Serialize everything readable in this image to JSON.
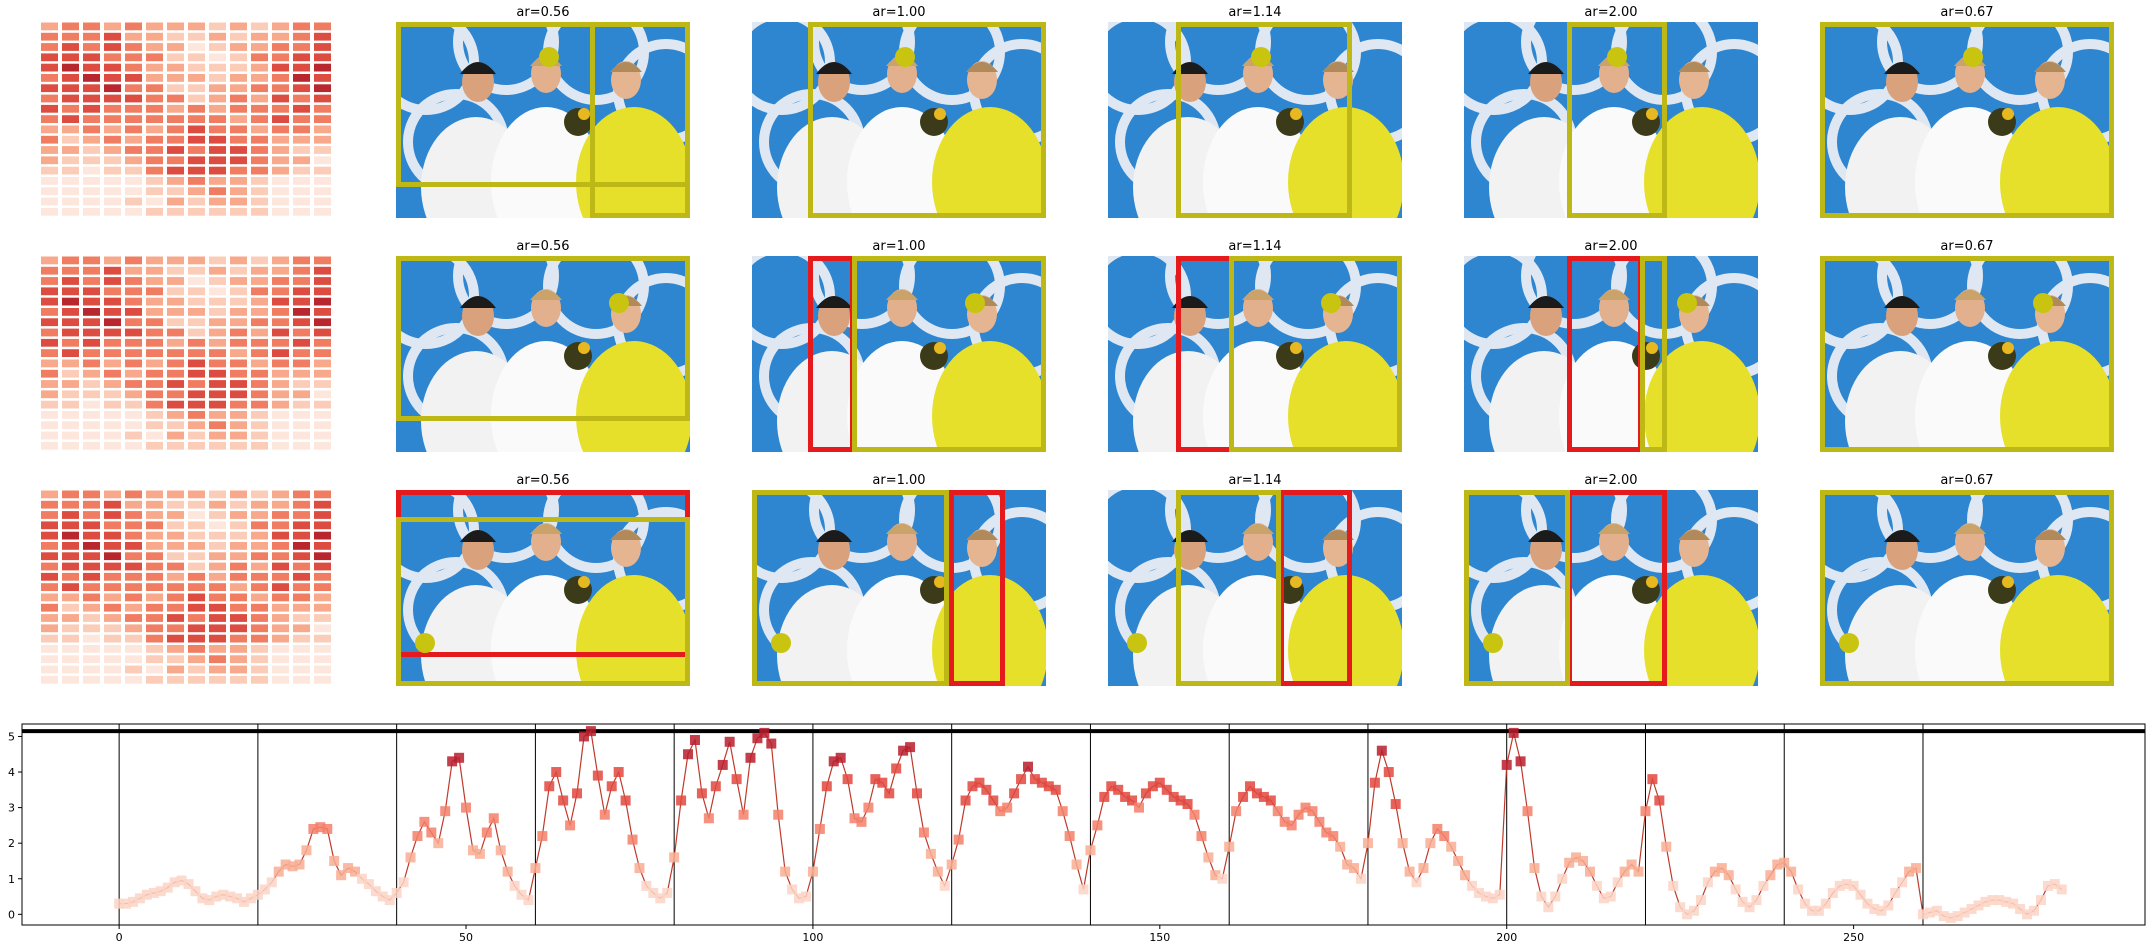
{
  "colors": {
    "yellow_box": "#bdb815",
    "red_box": "#e41a1c",
    "line": "#c0392b",
    "sky": "#2e86d1"
  },
  "rows": [
    {
      "panels": [
        {
          "title": "",
          "type": "heatmap"
        },
        {
          "title": "ar=0.56",
          "boxes": [
            {
              "color": "yellow"
            },
            {
              "color": "yellow"
            }
          ],
          "dot": true
        },
        {
          "title": "ar=1.00",
          "boxes": [
            {
              "color": "yellow"
            }
          ],
          "dot": true
        },
        {
          "title": "ar=1.14",
          "boxes": [
            {
              "color": "yellow"
            }
          ],
          "dot": true
        },
        {
          "title": "ar=2.00",
          "boxes": [
            {
              "color": "yellow"
            }
          ],
          "dot": true
        },
        {
          "title": "ar=0.67",
          "boxes": [
            {
              "color": "yellow"
            }
          ],
          "dot": true
        }
      ]
    },
    {
      "panels": [
        {
          "title": "",
          "type": "heatmap"
        },
        {
          "title": "ar=0.56",
          "boxes": [
            {
              "color": "yellow"
            }
          ],
          "dot": true
        },
        {
          "title": "ar=1.00",
          "boxes": [
            {
              "color": "red"
            },
            {
              "color": "yellow"
            }
          ],
          "dot": true
        },
        {
          "title": "ar=1.14",
          "boxes": [
            {
              "color": "red"
            },
            {
              "color": "yellow"
            }
          ],
          "dot": true
        },
        {
          "title": "ar=2.00",
          "boxes": [
            {
              "color": "red"
            },
            {
              "color": "yellow"
            }
          ],
          "dot": true
        },
        {
          "title": "ar=0.67",
          "boxes": [
            {
              "color": "yellow"
            }
          ],
          "dot": true
        }
      ]
    },
    {
      "panels": [
        {
          "title": "",
          "type": "heatmap"
        },
        {
          "title": "ar=0.56",
          "boxes": [
            {
              "color": "red"
            },
            {
              "color": "yellow"
            }
          ],
          "dot": true
        },
        {
          "title": "ar=1.00",
          "boxes": [
            {
              "color": "red"
            },
            {
              "color": "yellow"
            }
          ],
          "dot": true
        },
        {
          "title": "ar=1.14",
          "boxes": [
            {
              "color": "red"
            },
            {
              "color": "yellow"
            }
          ],
          "dot": true
        },
        {
          "title": "ar=2.00",
          "boxes": [
            {
              "color": "red"
            },
            {
              "color": "yellow"
            }
          ],
          "dot": true
        },
        {
          "title": "ar=0.67",
          "boxes": [
            {
              "color": "yellow"
            }
          ],
          "dot": true
        }
      ]
    }
  ],
  "chart_data": {
    "type": "line",
    "title": "",
    "xlabel": "",
    "ylabel": "",
    "xlim": [
      -14,
      292
    ],
    "ylim": [
      -0.3,
      5.35
    ],
    "x_ticks": [
      0,
      50,
      100,
      150,
      200,
      250
    ],
    "y_ticks": [
      0,
      1,
      2,
      3,
      4,
      5
    ],
    "hline": 5.15,
    "vlines": [
      0,
      20,
      40,
      60,
      80,
      100,
      120,
      140,
      160,
      180,
      200,
      220,
      240,
      260
    ],
    "grid": false,
    "legend": "none",
    "series": [
      {
        "values": [
          0.3,
          0.3,
          0.35,
          0.45,
          0.55,
          0.6,
          0.65,
          0.75,
          0.9,
          0.95,
          0.85,
          0.65,
          0.45,
          0.4,
          0.5,
          0.55,
          0.5,
          0.45,
          0.35,
          0.45,
          0.55,
          0.7,
          0.9,
          1.2,
          1.4,
          1.35,
          1.4,
          1.8,
          2.4,
          2.45,
          2.4,
          1.5,
          1.1,
          1.3,
          1.2,
          1.0,
          0.85,
          0.65,
          0.5,
          0.4,
          0.6,
          0.9,
          1.6,
          2.2,
          2.6,
          2.3,
          2.0,
          2.9,
          4.3,
          4.4,
          3.0,
          1.8,
          1.7,
          2.3,
          2.7,
          1.8,
          1.2,
          0.8,
          0.55,
          0.4,
          1.3,
          2.2,
          3.6,
          4.0,
          3.2,
          2.5,
          3.4,
          5.0,
          5.15,
          3.9,
          2.8,
          3.6,
          4.0,
          3.2,
          2.1,
          1.3,
          0.8,
          0.6,
          0.45,
          0.6,
          1.6,
          3.2,
          4.5,
          4.9,
          3.4,
          2.7,
          3.6,
          4.2,
          4.85,
          3.8,
          2.8,
          4.4,
          4.95,
          5.1,
          4.8,
          2.8,
          1.2,
          0.7,
          0.45,
          0.5,
          1.2,
          2.4,
          3.6,
          4.3,
          4.4,
          3.8,
          2.7,
          2.6,
          3.0,
          3.8,
          3.7,
          3.4,
          4.1,
          4.6,
          4.7,
          3.4,
          2.3,
          1.7,
          1.2,
          0.8,
          1.4,
          2.1,
          3.2,
          3.6,
          3.7,
          3.5,
          3.2,
          2.9,
          3.0,
          3.4,
          3.8,
          4.15,
          3.8,
          3.7,
          3.6,
          3.5,
          2.9,
          2.2,
          1.4,
          0.7,
          1.8,
          2.5,
          3.3,
          3.6,
          3.5,
          3.3,
          3.2,
          3.0,
          3.4,
          3.6,
          3.7,
          3.5,
          3.3,
          3.2,
          3.1,
          2.8,
          2.2,
          1.6,
          1.1,
          1.0,
          1.9,
          2.9,
          3.3,
          3.6,
          3.4,
          3.3,
          3.2,
          2.9,
          2.6,
          2.5,
          2.8,
          3.0,
          2.9,
          2.6,
          2.3,
          2.2,
          1.9,
          1.4,
          1.3,
          1.0,
          2.0,
          3.7,
          4.6,
          4.0,
          3.1,
          2.0,
          1.2,
          0.9,
          1.3,
          2.0,
          2.4,
          2.2,
          1.9,
          1.5,
          1.1,
          0.8,
          0.6,
          0.5,
          0.45,
          0.55,
          4.2,
          5.1,
          4.3,
          2.9,
          1.3,
          0.5,
          0.2,
          0.5,
          1.0,
          1.45,
          1.6,
          1.5,
          1.2,
          0.8,
          0.45,
          0.5,
          0.9,
          1.2,
          1.4,
          1.2,
          2.9,
          3.8,
          3.2,
          1.9,
          0.8,
          0.2,
          0.0,
          0.1,
          0.4,
          0.9,
          1.2,
          1.3,
          1.1,
          0.7,
          0.35,
          0.2,
          0.4,
          0.8,
          1.1,
          1.4,
          1.45,
          1.2,
          0.7,
          0.3,
          0.1,
          0.1,
          0.3,
          0.6,
          0.8,
          0.85,
          0.8,
          0.55,
          0.3,
          0.15,
          0.1,
          0.25,
          0.6,
          0.9,
          1.2,
          1.3,
          0.0,
          0.05,
          0.1,
          -0.05,
          -0.1,
          -0.05,
          0.05,
          0.15,
          0.25,
          0.35,
          0.4,
          0.4,
          0.35,
          0.3,
          0.15,
          0.0,
          0.1,
          0.4,
          0.8,
          0.85,
          0.7
        ]
      }
    ]
  }
}
